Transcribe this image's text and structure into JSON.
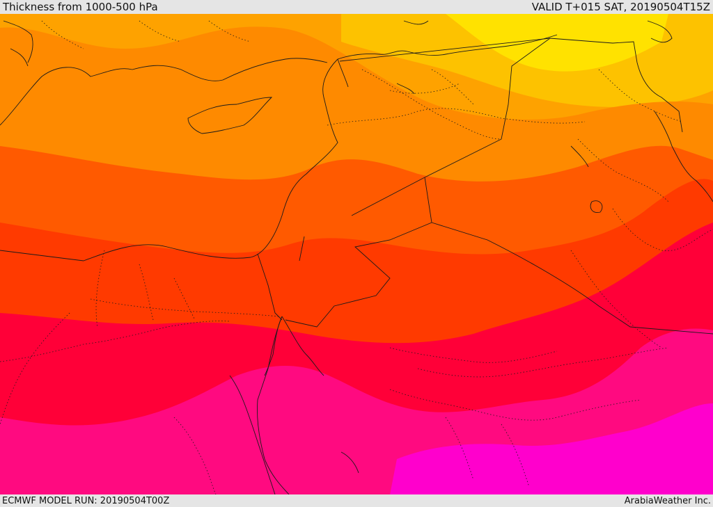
{
  "header": {
    "title": "Thickness from 1000-500 hPa",
    "valid": "VALID T+015 SAT, 20190504T15Z"
  },
  "footer": {
    "model_run": "ECMWF MODEL RUN: 20190504T00Z",
    "brand": "ArabiaWeather Inc."
  },
  "colors": {
    "band_yellow": "#ffe200",
    "band_gold": "#fdc200",
    "band_amber": "#fea200",
    "band_orange": "#fe8a00",
    "band_dark_orange": "#ff5a00",
    "band_red_orange": "#ff3a00",
    "band_red": "#ff0038",
    "band_deep_pink": "#ff0a80",
    "band_magenta": "#ff00cc",
    "boundary": "#1a1a1a"
  }
}
